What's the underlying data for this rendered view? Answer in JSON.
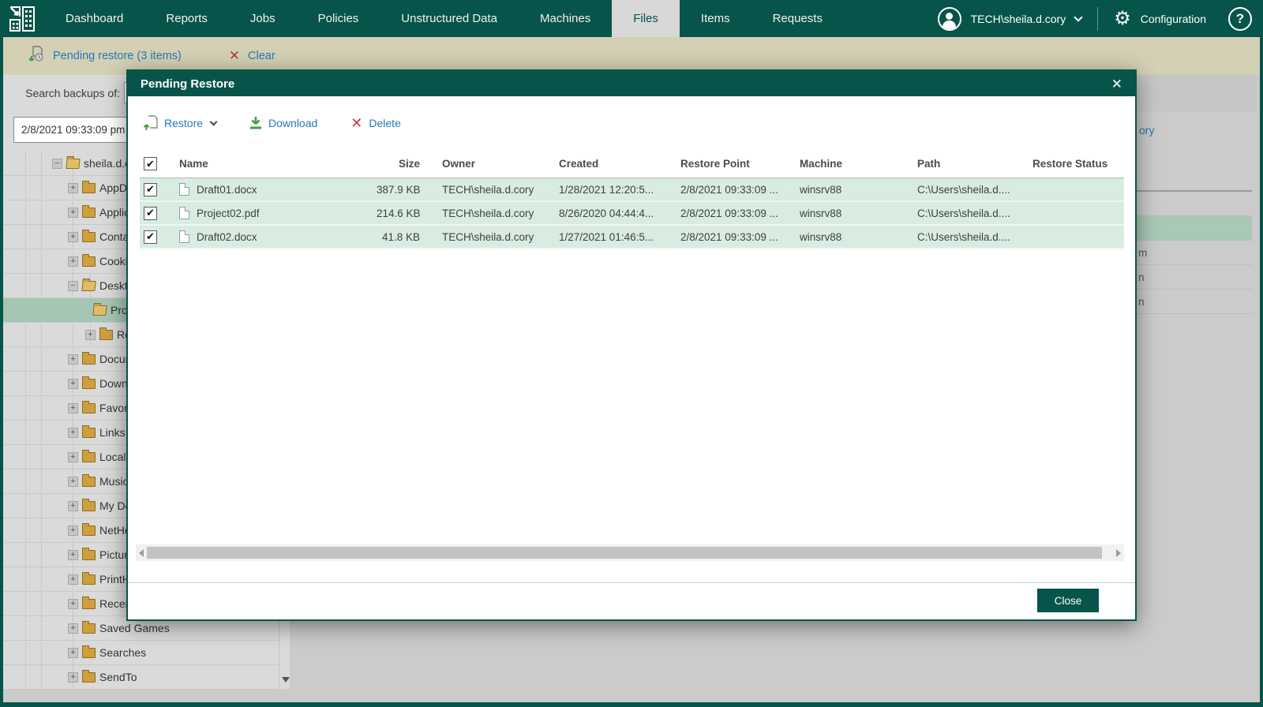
{
  "topnav": {
    "items": [
      {
        "label": "Dashboard",
        "active": false
      },
      {
        "label": "Reports",
        "active": false
      },
      {
        "label": "Jobs",
        "active": false
      },
      {
        "label": "Policies",
        "active": false
      },
      {
        "label": "Unstructured Data",
        "active": false
      },
      {
        "label": "Machines",
        "active": false
      },
      {
        "label": "Files",
        "active": true
      },
      {
        "label": "Items",
        "active": false
      },
      {
        "label": "Requests",
        "active": false
      }
    ],
    "user": {
      "name": "TECH\\sheila.d.cory"
    },
    "configuration_label": "Configuration",
    "help_label": "?"
  },
  "notice_bar": {
    "pending_label": "Pending restore (3 items)",
    "clear_label": "Clear"
  },
  "sidebar": {
    "search_label": "Search backups of:",
    "restore_point_value": "2/8/2021 09:33:09 pm",
    "tree": [
      {
        "name": "sheila.d.cory",
        "depth": 1,
        "expand": "minus",
        "open": true,
        "selected": false
      },
      {
        "name": "AppData",
        "depth": 2,
        "expand": "plus",
        "open": false,
        "selected": false
      },
      {
        "name": "Application Data",
        "depth": 2,
        "expand": "plus",
        "open": false,
        "selected": false
      },
      {
        "name": "Contacts",
        "depth": 2,
        "expand": "plus",
        "open": false,
        "selected": false
      },
      {
        "name": "Cookies",
        "depth": 2,
        "expand": "plus",
        "open": false,
        "selected": false
      },
      {
        "name": "Desktop",
        "depth": 2,
        "expand": "minus",
        "open": true,
        "selected": false
      },
      {
        "name": "Projects",
        "depth": 3,
        "expand": "none",
        "open": true,
        "selected": true
      },
      {
        "name": "Reports",
        "depth": 3,
        "expand": "plus",
        "open": false,
        "selected": false
      },
      {
        "name": "Documents",
        "depth": 2,
        "expand": "plus",
        "open": false,
        "selected": false
      },
      {
        "name": "Downloads",
        "depth": 2,
        "expand": "plus",
        "open": false,
        "selected": false
      },
      {
        "name": "Favorites",
        "depth": 2,
        "expand": "plus",
        "open": false,
        "selected": false
      },
      {
        "name": "Links",
        "depth": 2,
        "expand": "plus",
        "open": false,
        "selected": false
      },
      {
        "name": "Local Settings",
        "depth": 2,
        "expand": "plus",
        "open": false,
        "selected": false
      },
      {
        "name": "Music",
        "depth": 2,
        "expand": "plus",
        "open": false,
        "selected": false
      },
      {
        "name": "My Documents",
        "depth": 2,
        "expand": "plus",
        "open": false,
        "selected": false
      },
      {
        "name": "NetHood",
        "depth": 2,
        "expand": "plus",
        "open": false,
        "selected": false
      },
      {
        "name": "Pictures",
        "depth": 2,
        "expand": "plus",
        "open": false,
        "selected": false
      },
      {
        "name": "PrintHood",
        "depth": 2,
        "expand": "plus",
        "open": false,
        "selected": false
      },
      {
        "name": "Recent",
        "depth": 2,
        "expand": "plus",
        "open": false,
        "selected": false
      },
      {
        "name": "Saved Games",
        "depth": 2,
        "expand": "plus",
        "open": false,
        "selected": false
      },
      {
        "name": "Searches",
        "depth": 2,
        "expand": "plus",
        "open": false,
        "selected": false
      },
      {
        "name": "SendTo",
        "depth": 2,
        "expand": "plus",
        "open": false,
        "selected": false
      }
    ]
  },
  "modal": {
    "title": "Pending Restore",
    "close_icon": "✕",
    "toolbar": {
      "restore_label": "Restore",
      "download_label": "Download",
      "delete_label": "Delete"
    },
    "table": {
      "columns": [
        "Name",
        "Size",
        "Owner",
        "Created",
        "Restore Point",
        "Machine",
        "Path",
        "Restore Status"
      ],
      "rows": [
        {
          "name": "Draft01.docx",
          "size": "387.9 KB",
          "owner": "TECH\\sheila.d.cory",
          "created": "1/28/2021 12:20:5...",
          "restore_point": "2/8/2021 09:33:09 ...",
          "machine": "winsrv88",
          "path": "C:\\Users\\sheila.d....",
          "status": "",
          "checked": true
        },
        {
          "name": "Project02.pdf",
          "size": "214.6 KB",
          "owner": "TECH\\sheila.d.cory",
          "created": "8/26/2020 04:44:4...",
          "restore_point": "2/8/2021 09:33:09 ...",
          "machine": "winsrv88",
          "path": "C:\\Users\\sheila.d....",
          "status": "",
          "checked": true
        },
        {
          "name": "Draft02.docx",
          "size": "41.8 KB",
          "owner": "TECH\\sheila.d.cory",
          "created": "1/27/2021 01:46:5...",
          "restore_point": "2/8/2021 09:33:09 ...",
          "machine": "winsrv88",
          "path": "C:\\Users\\sheila.d....",
          "status": "",
          "checked": true
        }
      ]
    },
    "close_label": "Close"
  },
  "background_fragments": {
    "link_fragment": "ory",
    "rows": [
      {
        "text": "",
        "selected": false
      },
      {
        "text": "",
        "selected": true
      },
      {
        "text": "m",
        "selected": false
      },
      {
        "text": "n",
        "selected": false
      },
      {
        "text": "n",
        "selected": false
      }
    ]
  },
  "colors": {
    "accent_green": "#07544a",
    "beige_bar": "#d4d0b5",
    "link_blue": "#2679b5",
    "row_mint": "#d9ece1",
    "selected_mint": "#a6c6b4",
    "folder_tan": "#cf9f3e",
    "delete_red": "#b23b3f",
    "download_green": "#3d9e3d"
  }
}
